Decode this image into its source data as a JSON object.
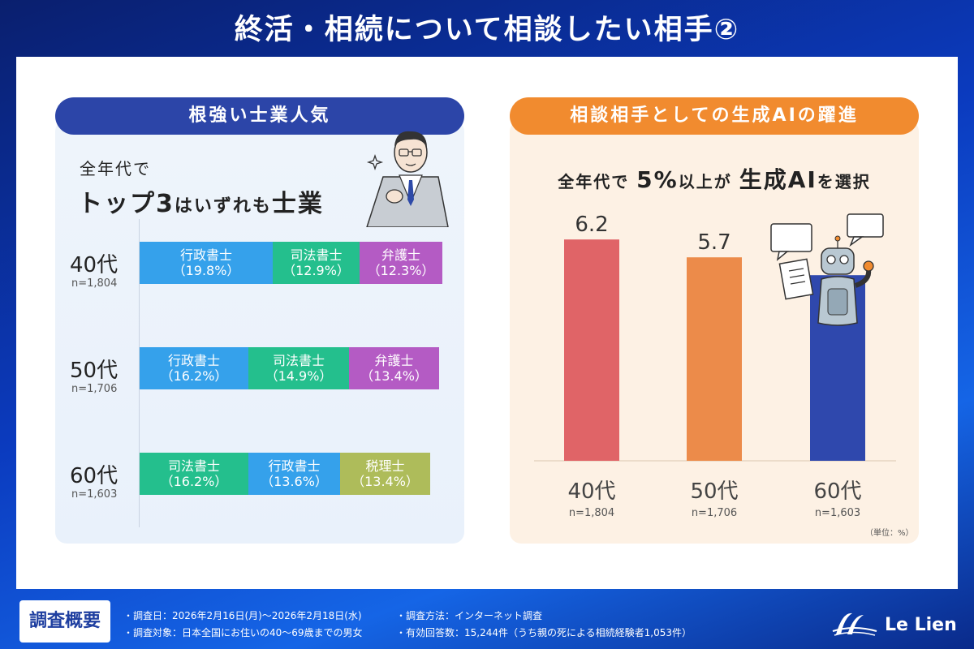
{
  "title": "終活・相続について相談したい相手②",
  "left": {
    "heading": "根強い士業人気",
    "intro_line1": "全年代で",
    "intro_line2_a": "トップ3",
    "intro_line2_b": "はいずれも",
    "intro_line2_c": "士業",
    "rows": [
      {
        "age": "40代",
        "n": "n=1,804",
        "segments": [
          {
            "label": "行政書士",
            "pct": "（19.8%）",
            "color_class": "c-gyosei",
            "value": 19.8
          },
          {
            "label": "司法書士",
            "pct": "（12.9%）",
            "color_class": "c-shiho",
            "value": 12.9
          },
          {
            "label": "弁護士",
            "pct": "（12.3%）",
            "color_class": "c-bengo",
            "value": 12.3
          }
        ]
      },
      {
        "age": "50代",
        "n": "n=1,706",
        "segments": [
          {
            "label": "行政書士",
            "pct": "（16.2%）",
            "color_class": "c-gyosei",
            "value": 16.2
          },
          {
            "label": "司法書士",
            "pct": "（14.9%）",
            "color_class": "c-shiho",
            "value": 14.9
          },
          {
            "label": "弁護士",
            "pct": "（13.4%）",
            "color_class": "c-bengo",
            "value": 13.4
          }
        ]
      },
      {
        "age": "60代",
        "n": "n=1,603",
        "segments": [
          {
            "label": "司法書士",
            "pct": "（16.2%）",
            "color_class": "c-shiho",
            "value": 16.2
          },
          {
            "label": "行政書士",
            "pct": "（13.6%）",
            "color_class": "c-gyosei",
            "value": 13.6
          },
          {
            "label": "税理士",
            "pct": "（13.4%）",
            "color_class": "c-zeiri",
            "value": 13.4
          }
        ]
      }
    ]
  },
  "right": {
    "heading": "相談相手としての生成AIの躍進",
    "sub_a": "全年代で",
    "sub_b": "5%",
    "sub_c": "以上が",
    "sub_d": "生成AI",
    "sub_e": "を選択",
    "unit": "（単位：%）"
  },
  "chart_data": {
    "type": "bar",
    "categories": [
      "40代",
      "50代",
      "60代"
    ],
    "n_labels": [
      "n=1,804",
      "n=1,706",
      "n=1,603"
    ],
    "values": [
      6.2,
      5.7,
      5.2
    ],
    "colors": [
      "#e06467",
      "#ec8b4a",
      "#2f48ad"
    ]
  },
  "footer": {
    "box": "調査概要",
    "note1": "・調査日：2026年2月16日(月)～2026年2月18日(水)",
    "note2": "・調査対象：日本全国にお住いの40～69歳までの男女",
    "note3": "・調査方法：インターネット調査",
    "note4": "・有効回答数：15,244件（うち親の死による相続経験者1,053件）",
    "logo": "Le Lien"
  }
}
